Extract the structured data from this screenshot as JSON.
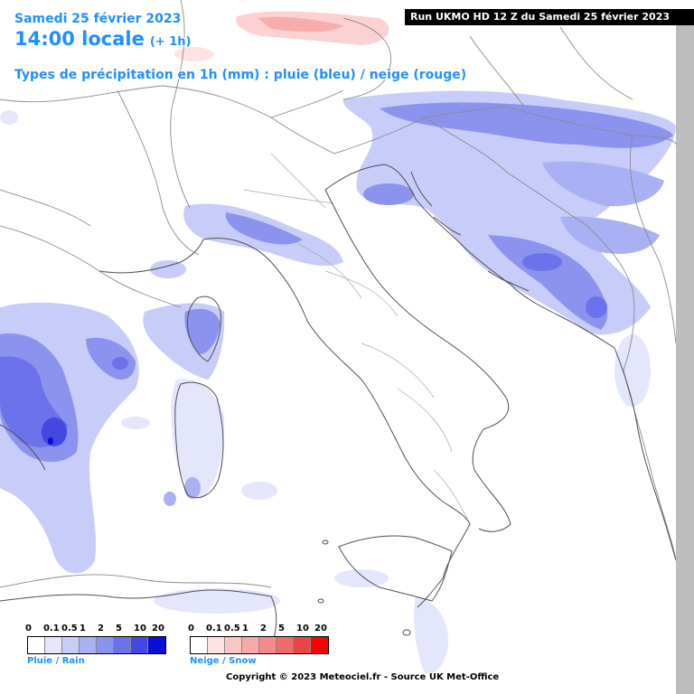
{
  "header": {
    "date_line": "Samedi 25 février 2023",
    "time_line": "14:00 locale",
    "time_offset": "(+ 1h)",
    "type_line": "Types de précipitation en 1h (mm) : pluie (bleu) / neige (rouge)"
  },
  "run_banner": "Run UKMO HD 12 Z du Samedi 25 février 2023",
  "legend_rain": {
    "label": "Pluie / Rain",
    "ticks": [
      "0",
      "0.1",
      "0.5",
      "1",
      "2",
      "5",
      "10",
      "20"
    ],
    "colors": [
      "#ffffff",
      "#e4e6fc",
      "#c8ccf8",
      "#aab0f4",
      "#8c93ef",
      "#6c72ea",
      "#4447e2",
      "#0b0dd8"
    ]
  },
  "legend_snow": {
    "label": "Neige / Snow",
    "ticks": [
      "0",
      "0.1",
      "0.5",
      "1",
      "2",
      "5",
      "10",
      "20"
    ],
    "colors": [
      "#ffffff",
      "#fde2e2",
      "#fac6c6",
      "#f7a8a8",
      "#f48a8a",
      "#ef6a6a",
      "#ea4545",
      "#ff0000"
    ]
  },
  "copyright": "Copyright © 2023 Meteociel.fr - Source UK Met-Office",
  "colors": {
    "title": "#1e90ff",
    "rain_light": "#c8ccf8",
    "rain_mid": "#8c93ef",
    "rain_heavy": "#4447e2",
    "snow_light": "#fac6c6",
    "border_line": "#8a8a8a",
    "coast_line": "#505050"
  }
}
